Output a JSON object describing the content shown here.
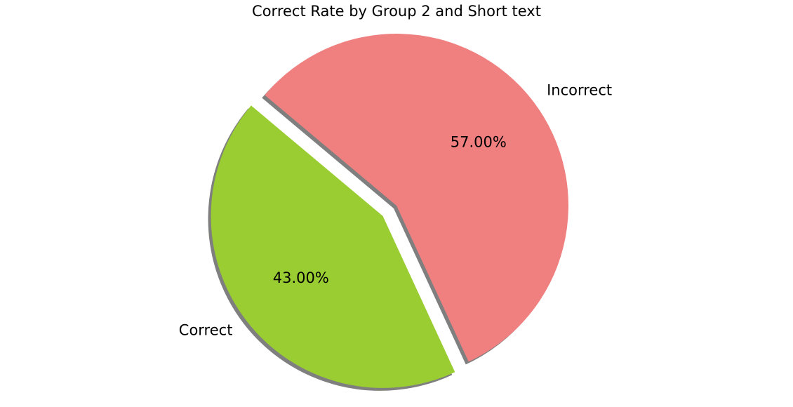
{
  "chart_data": {
    "type": "pie",
    "title": "Correct Rate by Group 2 and Short text",
    "slices": [
      {
        "label": "Correct",
        "value": 43.0,
        "percent_label": "43.00%",
        "color": "#9ACD32",
        "exploded": true
      },
      {
        "label": "Incorrect",
        "value": 57.0,
        "percent_label": "57.00%",
        "color": "#F08080",
        "exploded": false
      }
    ],
    "shadow": true,
    "shadow_color": "#7f7f7f"
  }
}
